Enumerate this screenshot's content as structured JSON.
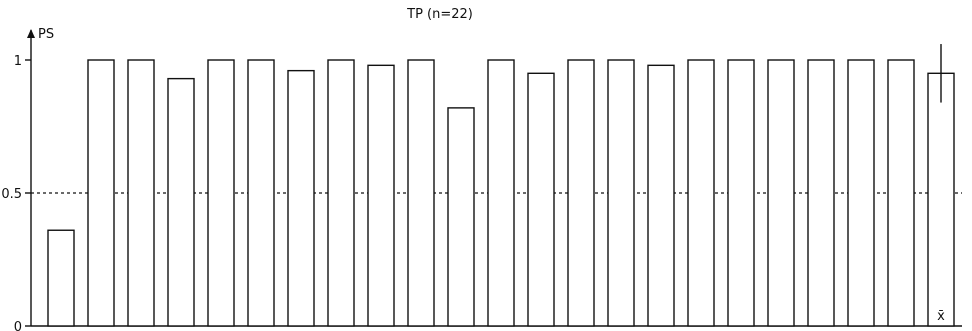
{
  "chart_data": {
    "type": "bar",
    "title": "TP (n=22)",
    "ylabel": "PS",
    "xlabel": "",
    "ylim": [
      0,
      1
    ],
    "yticks": [
      {
        "value": 0,
        "label": "0"
      },
      {
        "value": 0.5,
        "label": "0.5"
      },
      {
        "value": 1,
        "label": "1"
      }
    ],
    "reference_line": {
      "value": 0.5,
      "style": "dashed"
    },
    "grid": false,
    "values": [
      0.36,
      1.0,
      1.0,
      0.93,
      1.0,
      1.0,
      0.96,
      1.0,
      0.98,
      1.0,
      0.82,
      1.0,
      0.95,
      1.0,
      1.0,
      0.98,
      1.0,
      1.0,
      1.0,
      1.0,
      1.0,
      1.0
    ],
    "mean_bar": {
      "label": "x̄",
      "value": 0.95,
      "error_upper": 1.06,
      "error_lower": 0.84
    },
    "colors": {
      "bar_fill": "#ffffff",
      "stroke": "#111111"
    }
  }
}
